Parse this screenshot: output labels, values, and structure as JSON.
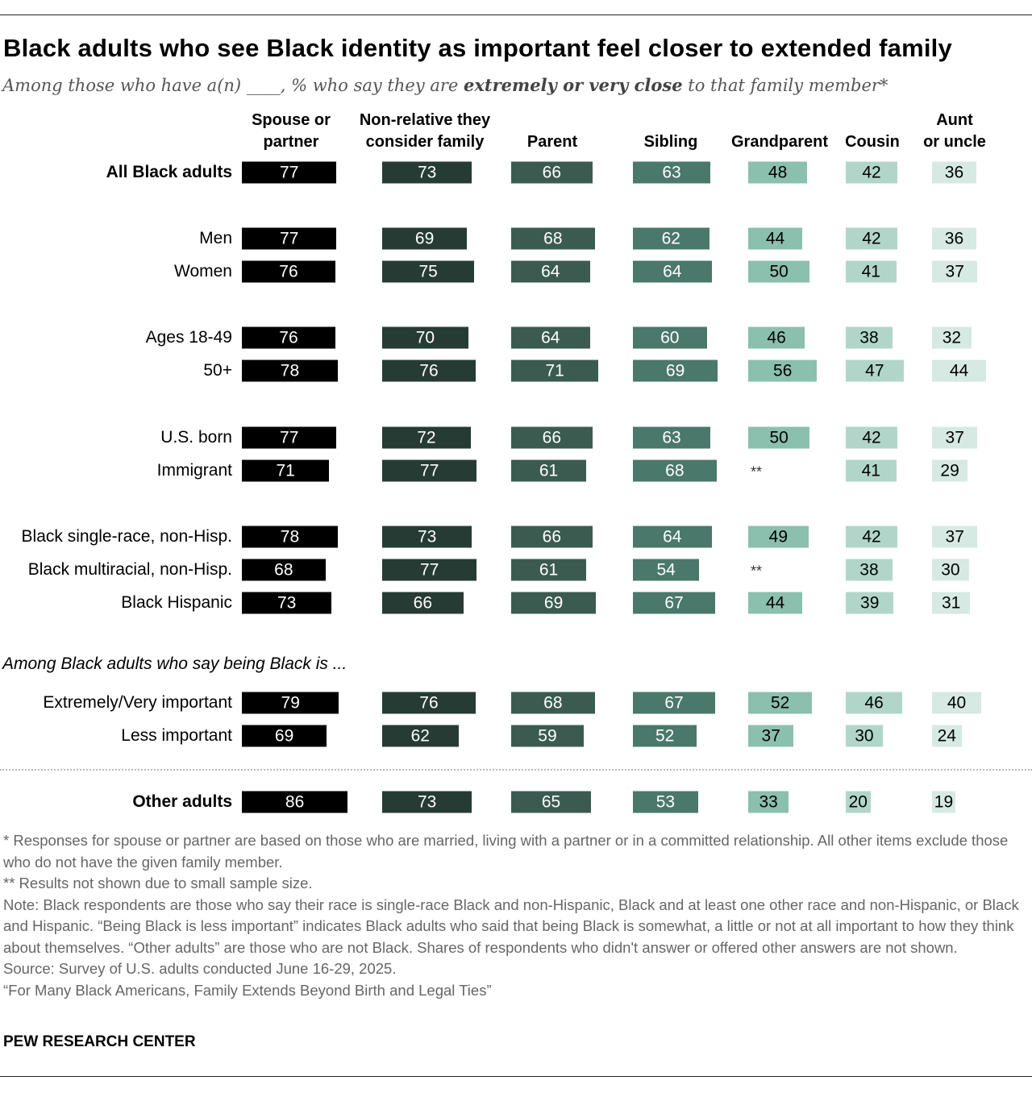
{
  "title": "Black adults who see Black identity as important feel closer to extended family",
  "subtitle": {
    "pre": "Among those who have a(n) ____, % who say they are ",
    "bold": "extremely or very close",
    "post": " to that family member*"
  },
  "chart_data": {
    "type": "bar",
    "title": "Black adults who see Black identity as important feel closer to extended family",
    "columns": [
      "Spouse or\npartner",
      "Non-relative they\nconsider family",
      "Parent",
      "Sibling",
      "Grandparent",
      "Cousin",
      "Aunt\nor uncle"
    ],
    "colors": [
      "#000000",
      "#263b34",
      "#3b5b51",
      "#4a786a",
      "#8bbfae",
      "#b1d6c9",
      "#d6e9e3"
    ],
    "rows": [
      {
        "label": "All Black adults",
        "bold": true,
        "values": [
          77,
          73,
          66,
          63,
          48,
          42,
          36
        ]
      },
      {
        "label": "Men",
        "values": [
          77,
          69,
          68,
          62,
          44,
          42,
          36
        ]
      },
      {
        "label": "Women",
        "values": [
          76,
          75,
          64,
          64,
          50,
          41,
          37
        ]
      },
      {
        "label": "Ages 18-49",
        "values": [
          76,
          70,
          64,
          60,
          46,
          38,
          32
        ]
      },
      {
        "label": "50+",
        "values": [
          78,
          76,
          71,
          69,
          56,
          47,
          44
        ]
      },
      {
        "label": "U.S. born",
        "values": [
          77,
          72,
          66,
          63,
          50,
          42,
          37
        ]
      },
      {
        "label": "Immigrant",
        "values": [
          71,
          77,
          61,
          68,
          null,
          41,
          29
        ]
      },
      {
        "label": "Black single-race, non-Hisp.",
        "values": [
          78,
          73,
          66,
          64,
          49,
          42,
          37
        ]
      },
      {
        "label": "Black multiracial, non-Hisp.",
        "values": [
          68,
          77,
          61,
          54,
          null,
          38,
          30
        ]
      },
      {
        "label": "Black Hispanic",
        "values": [
          73,
          66,
          69,
          67,
          44,
          39,
          31
        ]
      },
      {
        "label": "Extremely/Very important",
        "values": [
          79,
          76,
          68,
          67,
          52,
          46,
          40
        ]
      },
      {
        "label": "Less important",
        "values": [
          69,
          62,
          59,
          52,
          37,
          30,
          24
        ]
      },
      {
        "label": "Other adults",
        "bold": true,
        "values": [
          86,
          73,
          65,
          53,
          33,
          20,
          19
        ]
      }
    ],
    "na_label": "**"
  },
  "section_label": "Among Black adults who say being Black is ...",
  "notes": [
    "* Responses for spouse or partner are based on those who are married, living with a partner or in a committed relationship. All other items exclude those who do not have the given family member.",
    "** Results not shown due to small sample size.",
    "Note: Black respondents are those who say their race is single-race Black and non-Hispanic, Black and at least one other race and non-Hispanic, or Black and Hispanic. “Being Black is less important” indicates Black adults who said that being Black is somewhat, a little or not at all important to how they think about themselves. “Other adults” are those who are not Black. Shares of respondents who didn't answer or offered other answers are not shown.",
    "Source: Survey of U.S. adults conducted June 16-29, 2025.",
    "“For Many Black Americans, Family Extends Beyond Birth and Legal Ties”"
  ],
  "brand": "PEW RESEARCH CENTER"
}
